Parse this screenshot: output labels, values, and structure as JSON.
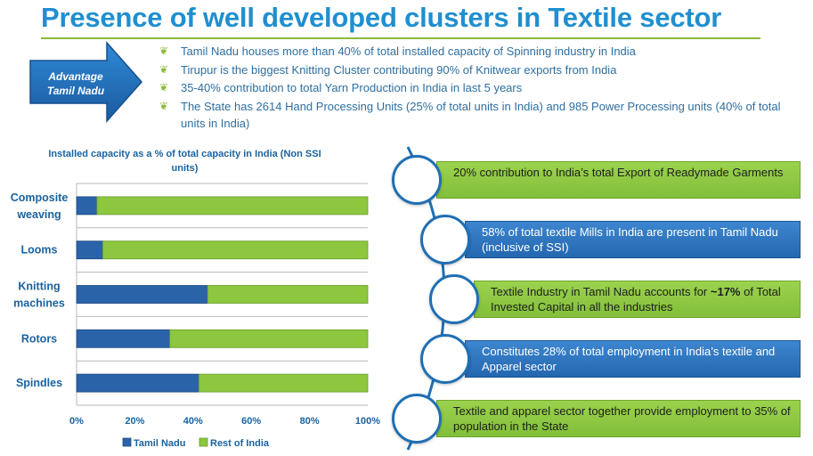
{
  "title": "Presence of well developed clusters in Textile sector",
  "advantage_label": "Advantage Tamil Nadu",
  "bullets": [
    "Tamil Nadu houses more than 40% of total installed capacity of Spinning industry in India",
    "Tirupur is the biggest Knitting Cluster contributing 90% of Knitwear exports from India",
    "35-40% contribution to total Yarn Production in India in last 5 years",
    "The State has 2614 Hand Processing Units (25% of total units in India) and 985 Power Processing units (40% of total units in India)"
  ],
  "colors": {
    "title": "#1f8fd0",
    "tamil_nadu": "#2b63a8",
    "rest_of_india": "#8dc63f",
    "text": "#1a63a0"
  },
  "chart_data": {
    "type": "bar",
    "orientation": "horizontal",
    "stacked": true,
    "title": "Installed capacity as a % of total capacity in India (Non SSI units)",
    "categories": [
      "Composite weaving",
      "Looms",
      "Knitting machines",
      "Rotors",
      "Spindles"
    ],
    "series": [
      {
        "name": "Tamil Nadu",
        "values": [
          7,
          9,
          45,
          32,
          42
        ]
      },
      {
        "name": "Rest of India",
        "values": [
          93,
          91,
          55,
          68,
          58
        ]
      }
    ],
    "xlim": [
      0,
      100
    ],
    "xticks": [
      "0%",
      "20%",
      "40%",
      "60%",
      "80%",
      "100%"
    ],
    "xtick_values": [
      0,
      20,
      40,
      60,
      80,
      100
    ],
    "grid": true,
    "legend_position": "bottom"
  },
  "facts": [
    {
      "text": "20% contribution to India’s  total Export of Readymade Garments",
      "style": "green"
    },
    {
      "text": "58% of total textile Mills in India are present in Tamil Nadu (inclusive of SSI)",
      "style": "blue"
    },
    {
      "pre": "Textile Industry in Tamil Nadu accounts for ",
      "bold": "~17%",
      "post": "  of Total Invested Capital in all the industries",
      "style": "green"
    },
    {
      "text": "Constitutes 28% of total employment in India’s textile and Apparel sector",
      "style": "blue"
    },
    {
      "text": "Textile and apparel  sector together provide employment to 35% of population in the State",
      "style": "green"
    }
  ]
}
